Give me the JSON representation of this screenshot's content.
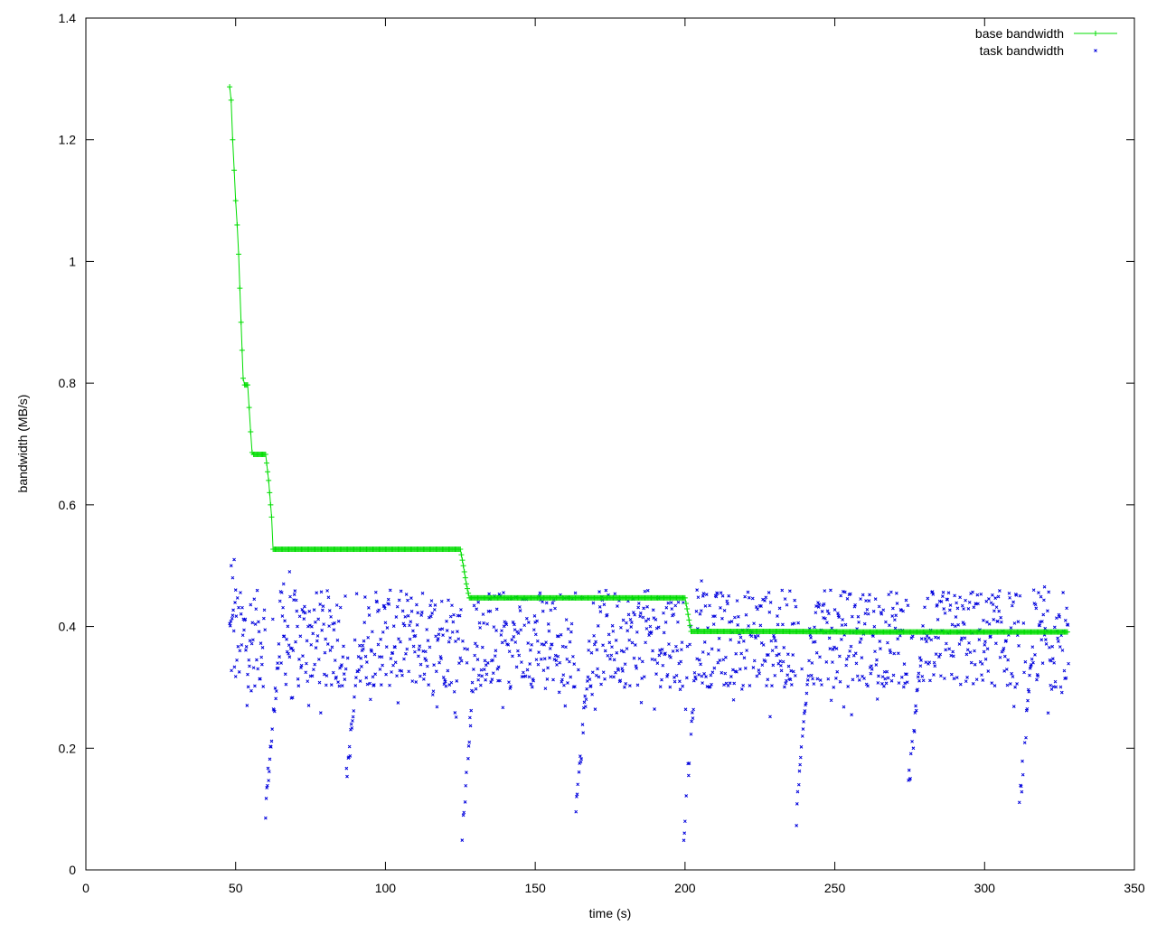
{
  "chart_data": {
    "type": "line",
    "title": "",
    "xlabel": "time (s)",
    "ylabel": "bandwidth (MB/s)",
    "xlim": [
      0,
      350
    ],
    "ylim": [
      0,
      1.4
    ],
    "x_ticks": [
      0,
      50,
      100,
      150,
      200,
      250,
      300,
      350
    ],
    "x_tick_labels": [
      "0",
      "50",
      "100",
      "150",
      "200",
      "250",
      "300",
      "350"
    ],
    "y_ticks": [
      0,
      0.2,
      0.4,
      0.6,
      0.8,
      1.0,
      1.2,
      1.4
    ],
    "y_tick_labels": [
      "0",
      "0.2",
      "0.4",
      "0.6",
      "0.8",
      "1",
      "1.2",
      "1.4"
    ],
    "grid": false,
    "legend_position": "top-right",
    "series": [
      {
        "name": "base bandwidth",
        "color": "#00dd00",
        "style": "linespoints",
        "marker": "plus",
        "points": [
          [
            48,
            1.287
          ],
          [
            48.5,
            1.265
          ],
          [
            49,
            1.2
          ],
          [
            49.5,
            1.15
          ],
          [
            50,
            1.1
          ],
          [
            50.5,
            1.06
          ],
          [
            51,
            1.012
          ],
          [
            51.8,
            0.9
          ],
          [
            52.5,
            0.808
          ],
          [
            53,
            0.797
          ],
          [
            54,
            0.797
          ],
          [
            54.5,
            0.76
          ],
          [
            55,
            0.72
          ],
          [
            55.5,
            0.686
          ],
          [
            56,
            0.683
          ],
          [
            59,
            0.683
          ],
          [
            60,
            0.683
          ],
          [
            61,
            0.64
          ],
          [
            62,
            0.58
          ],
          [
            62.5,
            0.527
          ],
          [
            80,
            0.527
          ],
          [
            100,
            0.527
          ],
          [
            125,
            0.527
          ],
          [
            126,
            0.5
          ],
          [
            127,
            0.47
          ],
          [
            128,
            0.447
          ],
          [
            150,
            0.447
          ],
          [
            175,
            0.447
          ],
          [
            200,
            0.447
          ],
          [
            201,
            0.42
          ],
          [
            202,
            0.392
          ],
          [
            230,
            0.392
          ],
          [
            260,
            0.391
          ],
          [
            290,
            0.391
          ],
          [
            328,
            0.391
          ]
        ]
      },
      {
        "name": "task bandwidth",
        "color": "#0000dd",
        "style": "points",
        "marker": "x",
        "segments": [
          {
            "t0": 48,
            "t1": 63,
            "dip_low": 0.1,
            "dip_at": 60,
            "peak": 0.51,
            "peak_at": 49.5
          },
          {
            "t0": 63,
            "t1": 126,
            "dip_low": 0.15,
            "dip_at": 87,
            "peak": 0.49,
            "peak_at": 67
          },
          {
            "t0": 126,
            "t1": 202,
            "dip_low": 0.05,
            "dip_at": 126,
            "peak": 0.44,
            "peak_at": 160
          },
          {
            "t0": 202,
            "t1": 328,
            "dip_low": 0.055,
            "dip_at": 200,
            "peak": 0.475,
            "peak_at": 205
          }
        ],
        "dips": [
          {
            "t": 60,
            "low": 0.105
          },
          {
            "t": 87,
            "low": 0.15
          },
          {
            "t": 125.5,
            "low": 0.05
          },
          {
            "t": 163.5,
            "low": 0.085
          },
          {
            "t": 199.5,
            "low": 0.055
          },
          {
            "t": 237,
            "low": 0.075
          },
          {
            "t": 274.5,
            "low": 0.13
          },
          {
            "t": 311.5,
            "low": 0.095
          }
        ],
        "level_range": [
          0.3,
          0.46
        ],
        "t_range": [
          48,
          328
        ]
      }
    ]
  }
}
